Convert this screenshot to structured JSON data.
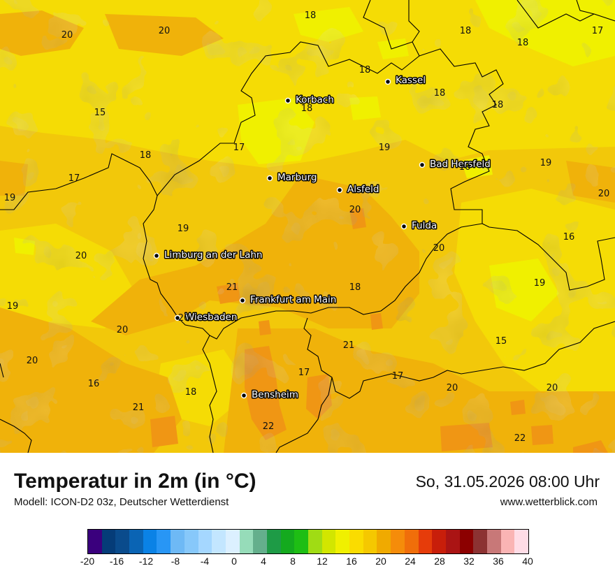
{
  "header": {
    "title": "Temperatur in 2m (in °C)",
    "model": "Modell: ICON-D2 03z, Deutscher Wetterdienst",
    "datetime": "So, 31.05.2026 08:00 Uhr",
    "website": "www.wetterblick.com"
  },
  "cities": [
    {
      "name": "Kassel"
    },
    {
      "name": "Korbach"
    },
    {
      "name": "Marburg"
    },
    {
      "name": "Alsfeld"
    },
    {
      "name": "Bad Hersfeld"
    },
    {
      "name": "Fulda"
    },
    {
      "name": "Limburg an der Lahn"
    },
    {
      "name": "Frankfurt am Main"
    },
    {
      "name": "Wiesbaden"
    },
    {
      "name": "Bensheim"
    }
  ],
  "temperature_labels": [
    "18",
    "20",
    "20",
    "18",
    "17",
    "18",
    "18",
    "18",
    "15",
    "18",
    "18",
    "17",
    "19",
    "18",
    "17",
    "19",
    "19",
    "16",
    "20",
    "20",
    "19",
    "20",
    "16",
    "20",
    "21",
    "18",
    "19",
    "19",
    "20",
    "20",
    "21",
    "15",
    "20",
    "17",
    "17",
    "16",
    "18",
    "20",
    "20",
    "21",
    "22",
    "22"
  ],
  "colorbar": {
    "tick_labels": [
      "-20",
      "-16",
      "-12",
      "-8",
      "-4",
      "0",
      "4",
      "8",
      "12",
      "16",
      "20",
      "24",
      "28",
      "32",
      "36",
      "40"
    ],
    "colors": [
      "#3a007d",
      "#053c78",
      "#0a4b8c",
      "#0a64b4",
      "#0a82e6",
      "#2896f5",
      "#6eb9f5",
      "#87c8fa",
      "#a5d7ff",
      "#c3e6ff",
      "#dcf0ff",
      "#96dcb9",
      "#64af8c",
      "#1e9b46",
      "#14aa1e",
      "#1ebe14",
      "#a0dc14",
      "#d2e600",
      "#f0f000",
      "#fadc00",
      "#f5c800",
      "#f0aa00",
      "#f58c0a",
      "#f06e0a",
      "#e63c0a",
      "#c81e0a",
      "#aa1414",
      "#8c0000",
      "#8c3232",
      "#c87878",
      "#fab4b4",
      "#ffdce6"
    ]
  }
}
